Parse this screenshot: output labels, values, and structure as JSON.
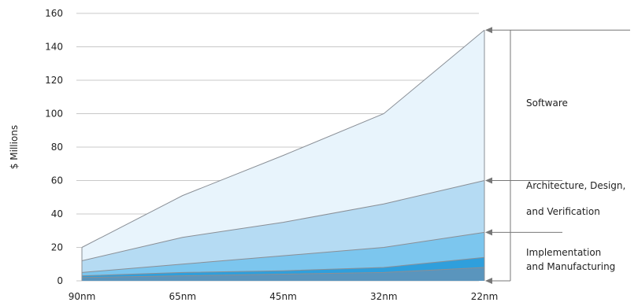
{
  "chart_data": {
    "type": "area",
    "stacked": true,
    "categories": [
      "90nm",
      "65nm",
      "45nm",
      "32nm",
      "22nm"
    ],
    "ylabel": "$ Millions",
    "xlabel": "",
    "ylim": [
      0,
      160
    ],
    "yticks": [
      0,
      20,
      40,
      60,
      80,
      100,
      120,
      140,
      160
    ],
    "grid": true,
    "colors": {
      "layer1": "#5a95bd",
      "layer2": "#2f9fdc",
      "layer3": "#7cc6ee",
      "layer4": "#b5dbf3",
      "layer5": "#e8f4fc",
      "outline": "#8a8f96",
      "grid": "#c8c8c8",
      "bracket": "#777777"
    },
    "cumulative_series": [
      {
        "name": "",
        "values": [
          2,
          3,
          4,
          5,
          8
        ]
      },
      {
        "name": "",
        "values": [
          3,
          5,
          6,
          8,
          14
        ]
      },
      {
        "name": "",
        "values": [
          5,
          10,
          15,
          20,
          29
        ]
      },
      {
        "name": "",
        "values": [
          12,
          26,
          35,
          46,
          60
        ]
      },
      {
        "name": "",
        "values": [
          20,
          51,
          75,
          100,
          150
        ]
      }
    ],
    "annotations": [
      {
        "lines": [
          "Software"
        ],
        "range": [
          60,
          150
        ]
      },
      {
        "lines": [
          "Architecture, Design,",
          "and Verification"
        ],
        "range": [
          29,
          60
        ]
      },
      {
        "lines": [
          "Implementation",
          "and Manufacturing"
        ],
        "range": [
          0,
          29
        ]
      }
    ]
  }
}
